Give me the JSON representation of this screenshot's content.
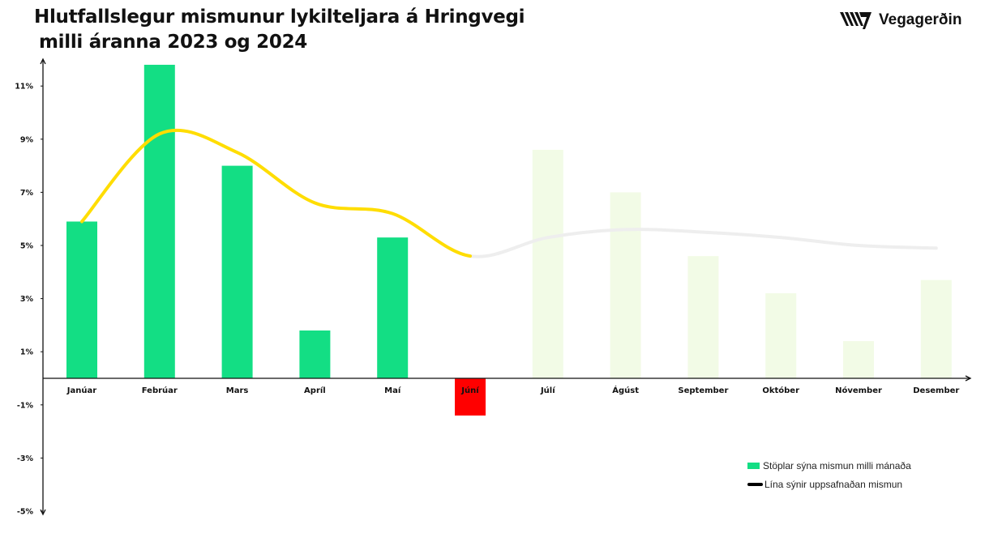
{
  "title": {
    "line1": "Hlutfallslegur mismunur lykilteljara á Hringvegi",
    "line2": "milli áranna 2023 og 2024"
  },
  "logo": {
    "text": "Vegagerðin",
    "icon": "vegagerdin-stripes-logo-icon"
  },
  "colors": {
    "bar_actual": "#13de84",
    "bar_negative": "#ff0000",
    "bar_forecast": "#f2fbe6",
    "line_actual": "#ffdd00",
    "line_forecast": "#eeeeee"
  },
  "legend": {
    "bars": "Stöplar sýna mismun milli mánaða",
    "line": "Lína sýnir uppsafnaðan mismun"
  },
  "chart_data": {
    "type": "bar",
    "categories": [
      "Janúar",
      "Febrúar",
      "Mars",
      "Apríl",
      "Maí",
      "Júní",
      "Júlí",
      "Ágúst",
      "September",
      "Október",
      "Nóvember",
      "Desember"
    ],
    "series": [
      {
        "type": "bar",
        "values": [
          5.9,
          11.8,
          8.0,
          1.8,
          5.3,
          -1.4,
          8.6,
          7.0,
          4.6,
          3.2,
          1.4,
          3.7
        ]
      },
      {
        "type": "line",
        "values": [
          5.9,
          9.2,
          8.5,
          6.6,
          6.2,
          4.6,
          5.3,
          5.6,
          5.5,
          5.3,
          5.0,
          4.9
        ]
      }
    ],
    "actual_months": 6,
    "yticks": [
      "11%",
      "9%",
      "7%",
      "5%",
      "3%",
      "1%",
      "-1%",
      "-3%",
      "-5%"
    ],
    "ytick_values": [
      11,
      9,
      7,
      5,
      3,
      1,
      -1,
      -3,
      -5
    ],
    "ylim": [
      -5,
      12
    ],
    "grid": false,
    "legend_position": "bottom-right"
  }
}
